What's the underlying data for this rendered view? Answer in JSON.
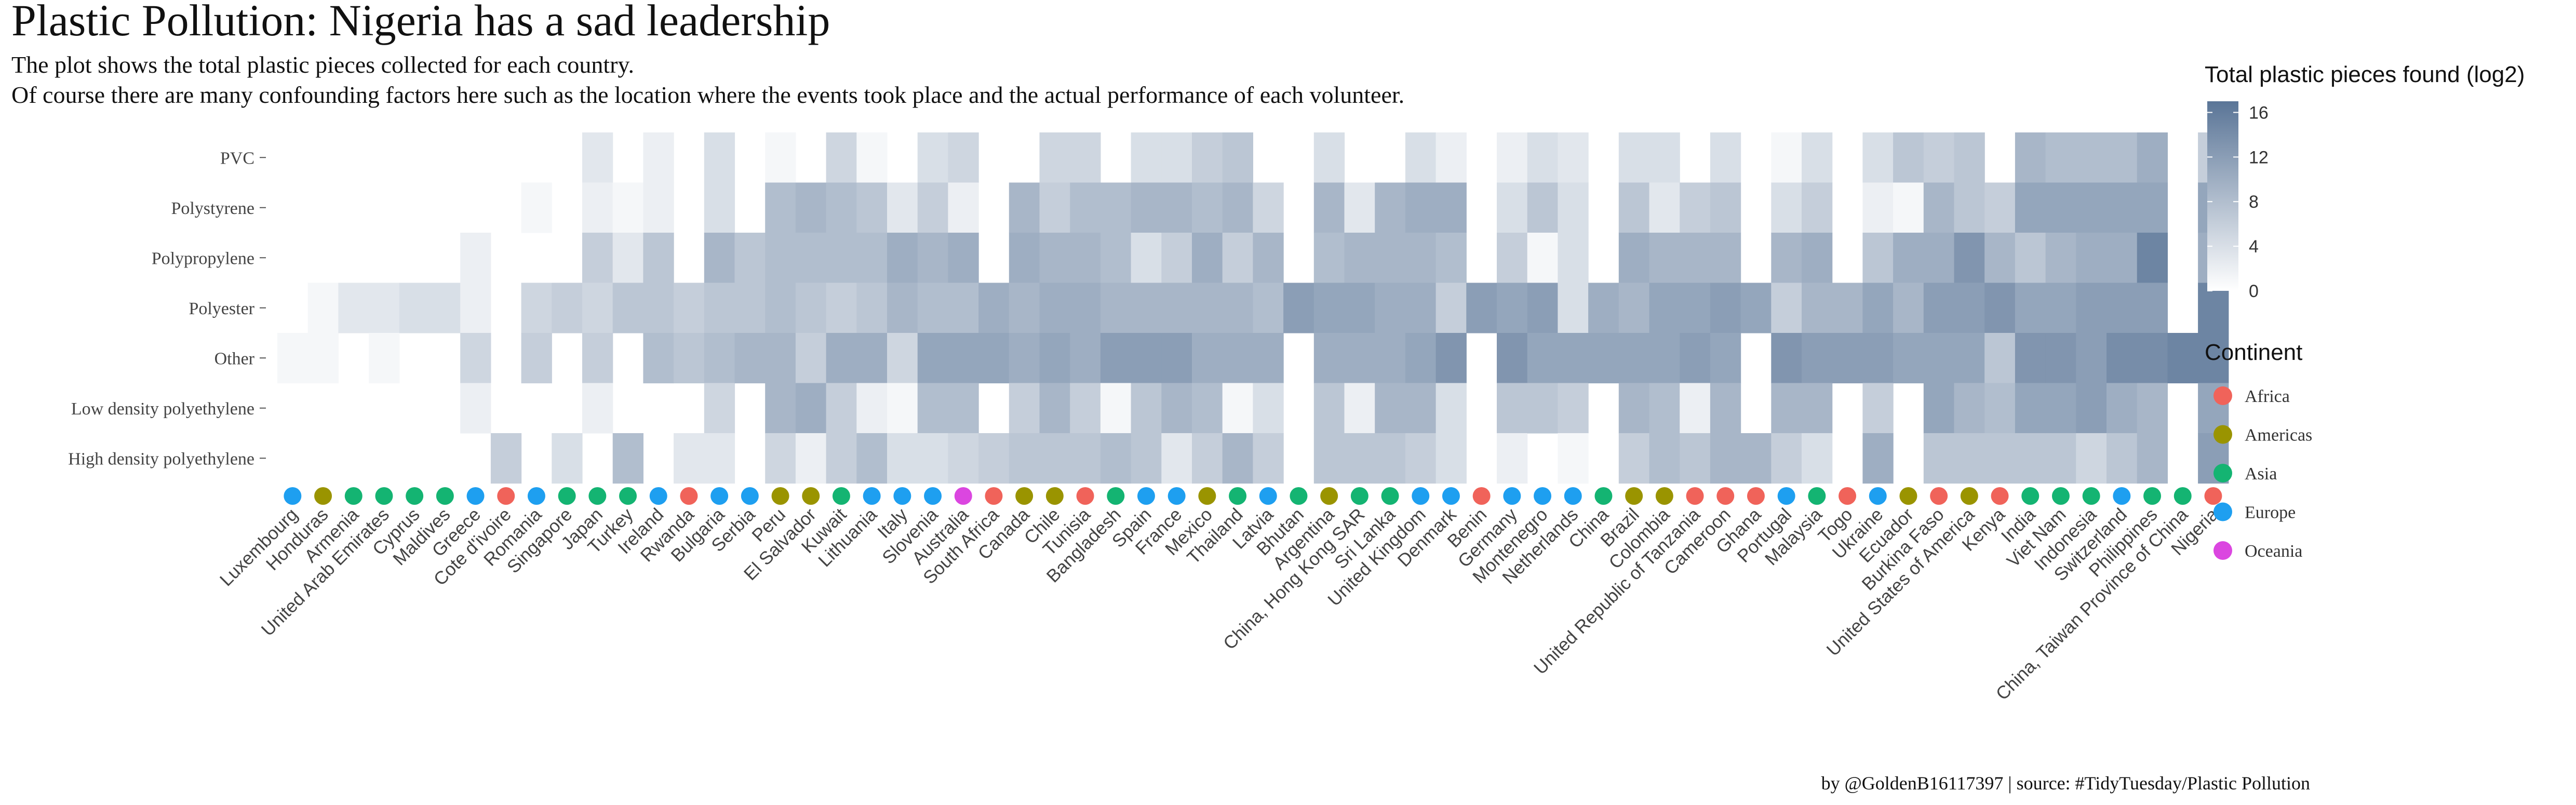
{
  "title": "Plastic Pollution: Nigeria has a sad leadership",
  "subtitle_lines": [
    "The plot shows the total plastic pieces collected for each country.",
    "Of course there are many confounding factors here such as the location where the events took place and the actual performance of each volunteer."
  ],
  "caption": "by @GoldenB16117397 | source: #TidyTuesday/Plastic Pollution",
  "chart_data": {
    "type": "heatmap",
    "x_label": "",
    "y_label": "",
    "y_categories": [
      "PVC",
      "Polystyrene",
      "Polypropylene",
      "Polyester",
      "Other",
      "Low density polyethylene",
      "High density polyethylene"
    ],
    "x_categories": [
      "Luxembourg",
      "Honduras",
      "Armenia",
      "United Arab Emirates",
      "Cyprus",
      "Maldives",
      "Greece",
      "Cote d'ivoire",
      "Romania",
      "Singapore",
      "Japan",
      "Turkey",
      "Ireland",
      "Rwanda",
      "Bulgaria",
      "Serbia",
      "Peru",
      "El Salvador",
      "Kuwait",
      "Lithuania",
      "Italy",
      "Slovenia",
      "Australia",
      "South Africa",
      "Canada",
      "Chile",
      "Tunisia",
      "Bangladesh",
      "Spain",
      "France",
      "Mexico",
      "Thailand",
      "Latvia",
      "Bhutan",
      "Argentina",
      "China, Hong Kong SAR",
      "Sri Lanka",
      "United Kingdom",
      "Denmark",
      "Benin",
      "Germany",
      "Montenegro",
      "Netherlands",
      "China",
      "Brazil",
      "Colombia",
      "United Republic of Tanzania",
      "Cameroon",
      "Ghana",
      "Portugal",
      "Malaysia",
      "Togo",
      "Ukraine",
      "Ecuador",
      "Burkina Faso",
      "United States of America",
      "Kenya",
      "India",
      "Viet Nam",
      "Indonesia",
      "Switzerland",
      "Philippines",
      "China, Taiwan Province of China",
      "Nigeria"
    ],
    "continents": [
      "Europe",
      "Americas",
      "Asia",
      "Asia",
      "Asia",
      "Asia",
      "Europe",
      "Africa",
      "Europe",
      "Asia",
      "Asia",
      "Asia",
      "Europe",
      "Africa",
      "Europe",
      "Europe",
      "Americas",
      "Americas",
      "Asia",
      "Europe",
      "Europe",
      "Europe",
      "Oceania",
      "Africa",
      "Americas",
      "Americas",
      "Africa",
      "Asia",
      "Europe",
      "Europe",
      "Americas",
      "Asia",
      "Europe",
      "Asia",
      "Americas",
      "Asia",
      "Asia",
      "Europe",
      "Europe",
      "Africa",
      "Europe",
      "Europe",
      "Europe",
      "Asia",
      "Americas",
      "Americas",
      "Africa",
      "Africa",
      "Africa",
      "Europe",
      "Asia",
      "Africa",
      "Europe",
      "Americas",
      "Africa",
      "Americas",
      "Africa",
      "Asia",
      "Asia",
      "Asia",
      "Europe",
      "Asia",
      "Asia",
      "Africa"
    ],
    "values_note": "rows follow x_categories order; columns follow y_categories order (PVC, Polystyrene, Polypropylene, Polyester, Other, LDPE, HDPE); null = no data",
    "values": [
      [
        null,
        null,
        null,
        null,
        1,
        null,
        null
      ],
      [
        null,
        null,
        null,
        1,
        1,
        null,
        null
      ],
      [
        null,
        null,
        null,
        3,
        null,
        null,
        null
      ],
      [
        null,
        null,
        null,
        3,
        1,
        null,
        null
      ],
      [
        null,
        null,
        null,
        4,
        null,
        null,
        null
      ],
      [
        null,
        null,
        null,
        4,
        null,
        null,
        null
      ],
      [
        null,
        null,
        2,
        2,
        5,
        2,
        null
      ],
      [
        null,
        null,
        null,
        null,
        null,
        null,
        6
      ],
      [
        null,
        1,
        null,
        5,
        6,
        null,
        null
      ],
      [
        null,
        null,
        null,
        6,
        null,
        null,
        4
      ],
      [
        3,
        2,
        6,
        5,
        6,
        2,
        null
      ],
      [
        null,
        1,
        3,
        7,
        null,
        null,
        8
      ],
      [
        2,
        2,
        7,
        7,
        8,
        null,
        null
      ],
      [
        null,
        null,
        null,
        6,
        7,
        null,
        3
      ],
      [
        4,
        4,
        9,
        7,
        8,
        5,
        3
      ],
      [
        null,
        null,
        7,
        7,
        9,
        null,
        null
      ],
      [
        1,
        8,
        8,
        8,
        9,
        9,
        5
      ],
      [
        null,
        9,
        8,
        7,
        6,
        10,
        2
      ],
      [
        5,
        8,
        8,
        6,
        10,
        6,
        6
      ],
      [
        1,
        7,
        8,
        7,
        10,
        2,
        8
      ],
      [
        null,
        3,
        10,
        9,
        5,
        1,
        4
      ],
      [
        4,
        6,
        9,
        8,
        11,
        8,
        4
      ],
      [
        5,
        2,
        10,
        8,
        11,
        8,
        5
      ],
      [
        null,
        null,
        null,
        10,
        11,
        null,
        6
      ],
      [
        null,
        9,
        10,
        9,
        10,
        6,
        7
      ],
      [
        5,
        6,
        9,
        10,
        11,
        9,
        7
      ],
      [
        5,
        8,
        9,
        10,
        10,
        6,
        7
      ],
      [
        null,
        8,
        8,
        9,
        12,
        1,
        8
      ],
      [
        4,
        9,
        4,
        9,
        12,
        7,
        7
      ],
      [
        4,
        9,
        6,
        9,
        12,
        9,
        3
      ],
      [
        6,
        8,
        10,
        9,
        10,
        8,
        6
      ],
      [
        7,
        9,
        6,
        9,
        10,
        1,
        9
      ],
      [
        null,
        5,
        9,
        8,
        10,
        4,
        6
      ],
      [
        null,
        null,
        null,
        12,
        null,
        null,
        null
      ],
      [
        4,
        9,
        8,
        11,
        10,
        7,
        7
      ],
      [
        null,
        3,
        9,
        11,
        10,
        2,
        7
      ],
      [
        null,
        9,
        9,
        10,
        10,
        9,
        7
      ],
      [
        4,
        10,
        9,
        10,
        11,
        9,
        6
      ],
      [
        2,
        10,
        8,
        6,
        13,
        4,
        4
      ],
      [
        null,
        null,
        null,
        12,
        null,
        null,
        null
      ],
      [
        2,
        4,
        6,
        11,
        13,
        7,
        2
      ],
      [
        4,
        7,
        1,
        12,
        11,
        7,
        null
      ],
      [
        3,
        4,
        4,
        4,
        11,
        6,
        1
      ],
      [
        null,
        null,
        null,
        10,
        11,
        null,
        null
      ],
      [
        4,
        7,
        10,
        9,
        11,
        9,
        6
      ],
      [
        4,
        3,
        9,
        11,
        11,
        8,
        8
      ],
      [
        null,
        6,
        9,
        11,
        12,
        2,
        7
      ],
      [
        4,
        7,
        9,
        12,
        11,
        9,
        9
      ],
      [
        null,
        null,
        null,
        11,
        null,
        null,
        9
      ],
      [
        1,
        4,
        9,
        6,
        13,
        9,
        6
      ],
      [
        4,
        6,
        10,
        9,
        12,
        9,
        4
      ],
      [
        null,
        null,
        null,
        9,
        12,
        null,
        null
      ],
      [
        4,
        2,
        7,
        11,
        12,
        6,
        10
      ],
      [
        7,
        1,
        10,
        9,
        11,
        null,
        null
      ],
      [
        6,
        9,
        10,
        12,
        11,
        11,
        7
      ],
      [
        7,
        7,
        13,
        12,
        11,
        9,
        7
      ],
      [
        null,
        6,
        9,
        13,
        7,
        8,
        7
      ],
      [
        9,
        11,
        7,
        11,
        13,
        11,
        7
      ],
      [
        8,
        11,
        9,
        11,
        13,
        11,
        7
      ],
      [
        8,
        11,
        10,
        12,
        12,
        12,
        5
      ],
      [
        8,
        11,
        10,
        12,
        14,
        10,
        7
      ],
      [
        10,
        11,
        15,
        12,
        14,
        9,
        9
      ],
      [
        null,
        null,
        null,
        null,
        15,
        null,
        null
      ],
      [
        6,
        11,
        10,
        15,
        15,
        11,
        12
      ]
    ],
    "color_scale": {
      "low": "#ffffff",
      "high": "#5a7597",
      "domain": [
        0,
        17
      ]
    },
    "legend_title": "Total plastic pieces found (log2)",
    "legend_ticks": [
      0,
      4,
      8,
      12,
      16
    ],
    "continent_legend_title": "Continent",
    "continent_legend": [
      "Africa",
      "Americas",
      "Asia",
      "Europe",
      "Oceania"
    ],
    "continent_colors": {
      "Africa": "#f0635a",
      "Americas": "#9a9400",
      "Asia": "#14b472",
      "Europe": "#1e9ff0",
      "Oceania": "#db46e0"
    },
    "legend_placement": "right",
    "grid": false
  }
}
